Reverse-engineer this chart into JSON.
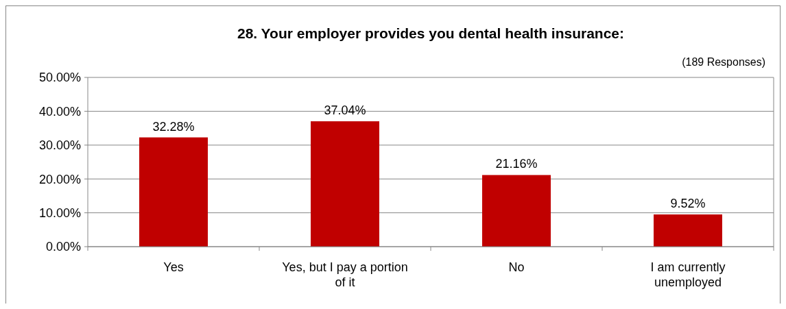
{
  "chart_data": {
    "type": "bar",
    "title": "28.  Your employer provides you dental health insurance:",
    "annotations": [
      "(189 Responses)"
    ],
    "categories": [
      "Yes",
      "Yes, but I pay a portion of it",
      "No",
      "I am currently unemployed"
    ],
    "values": [
      32.28,
      37.04,
      21.16,
      9.52
    ],
    "value_labels": [
      "32.28%",
      "37.04%",
      "21.16%",
      "9.52%"
    ],
    "color": "#c00000",
    "ylim": [
      0,
      50
    ],
    "yticks": [
      {
        "value": 0,
        "label": "0.00%"
      },
      {
        "value": 10,
        "label": "10.00%"
      },
      {
        "value": 20,
        "label": "20.00%"
      },
      {
        "value": 30,
        "label": "30.00%"
      },
      {
        "value": 40,
        "label": "40.00%"
      },
      {
        "value": 50,
        "label": "50.00%"
      }
    ],
    "grid": "y"
  }
}
